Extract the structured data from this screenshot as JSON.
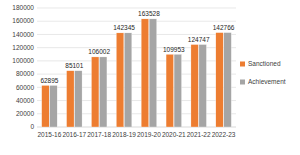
{
  "chart_data": {
    "type": "bar",
    "categories": [
      "2015-16",
      "2016-17",
      "2017-18",
      "2018-19",
      "2019-20",
      "2020-21",
      "2021-22",
      "2022-23"
    ],
    "series": [
      {
        "name": "Sanctioned",
        "color": "#ed7d31",
        "values": [
          62895,
          85101,
          106002,
          142345,
          163528,
          109953,
          124747,
          142766
        ],
        "data_labels": true
      },
      {
        "name": "Achievement",
        "color": "#a5a5a5",
        "values": [
          62895,
          85101,
          106002,
          142345,
          163528,
          109953,
          124747,
          142766
        ]
      }
    ],
    "ylim": [
      0,
      180000
    ],
    "yticks": [
      0,
      20000,
      40000,
      60000,
      80000,
      100000,
      120000,
      140000,
      160000,
      180000
    ],
    "grid": true,
    "legend": "right"
  }
}
